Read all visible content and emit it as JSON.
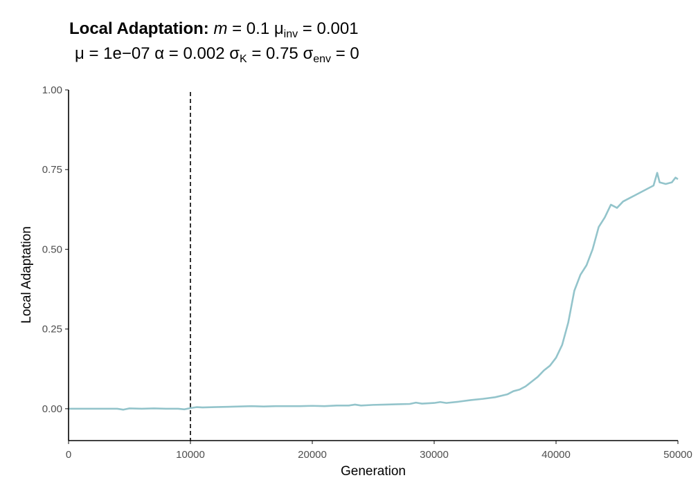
{
  "title": {
    "bold": "Local Adaptation:",
    "m_sym": "m",
    "m_val": " = 0.1 ",
    "mu_inv_sym": "μ",
    "mu_inv_sub": "inv",
    "mu_inv_val": " = 0.001",
    "mu_sym": "μ",
    "mu_val": " = 1e−07 ",
    "alpha_sym": "α",
    "alpha_val": " = 0.002 ",
    "sigmaK_sym": "σ",
    "sigmaK_sub": "K",
    "sigmaK_val": " = 0.75 ",
    "sigmaEnv_sym": "σ",
    "sigmaEnv_sub": "env",
    "sigmaEnv_val": " = 0"
  },
  "chart_data": {
    "type": "line",
    "xlabel": "Generation",
    "ylabel": "Local Adaptation",
    "xlim": [
      0,
      50000
    ],
    "ylim": [
      -0.1,
      1.0
    ],
    "x_ticks": [
      0,
      10000,
      20000,
      30000,
      40000,
      50000
    ],
    "x_tick_labels": [
      "0",
      "10000",
      "20000",
      "30000",
      "40000",
      "50000"
    ],
    "y_ticks": [
      0,
      0.25,
      0.5,
      0.75,
      1.0
    ],
    "y_tick_labels": [
      "0.00",
      "0.25",
      "0.50",
      "0.75",
      "1.00"
    ],
    "grid": false,
    "line_color": "#93c4cb",
    "vline": {
      "x": 10000,
      "style": "dashed",
      "color": "#000000"
    },
    "series": [
      {
        "x": [
          0,
          1000,
          2000,
          3000,
          4000,
          4500,
          5000,
          6000,
          7000,
          8000,
          9000,
          9500,
          10000,
          10500,
          11000,
          12000,
          13000,
          14000,
          15000,
          16000,
          17000,
          18000,
          19000,
          20000,
          21000,
          22000,
          23000,
          23500,
          24000,
          25000,
          26000,
          27000,
          28000,
          28500,
          29000,
          30000,
          30500,
          31000,
          32000,
          33000,
          34000,
          35000,
          36000,
          36500,
          37000,
          37500,
          38000,
          38500,
          39000,
          39500,
          40000,
          40500,
          41000,
          41300,
          41500,
          42000,
          42500,
          43000,
          43500,
          44000,
          44500,
          45000,
          45500,
          46000,
          46500,
          47000,
          47500,
          48000,
          48300,
          48500,
          49000,
          49500,
          49800,
          50000
        ],
        "values": [
          0.0,
          0.0,
          0.0,
          0.0,
          0.0,
          -0.003,
          0.001,
          0.0,
          0.001,
          0.0,
          0.0,
          -0.002,
          0.002,
          0.005,
          0.004,
          0.005,
          0.006,
          0.007,
          0.008,
          0.007,
          0.008,
          0.008,
          0.008,
          0.009,
          0.008,
          0.01,
          0.01,
          0.013,
          0.01,
          0.012,
          0.013,
          0.014,
          0.015,
          0.019,
          0.016,
          0.018,
          0.021,
          0.018,
          0.022,
          0.027,
          0.031,
          0.036,
          0.045,
          0.055,
          0.06,
          0.07,
          0.085,
          0.1,
          0.12,
          0.135,
          0.16,
          0.2,
          0.27,
          0.33,
          0.37,
          0.42,
          0.45,
          0.5,
          0.57,
          0.6,
          0.64,
          0.63,
          0.65,
          0.66,
          0.67,
          0.68,
          0.69,
          0.7,
          0.74,
          0.71,
          0.705,
          0.71,
          0.725,
          0.72
        ]
      }
    ]
  }
}
